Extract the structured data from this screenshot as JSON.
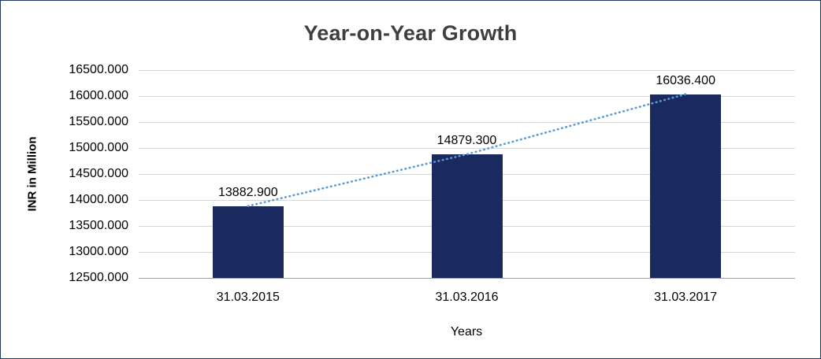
{
  "chart_data": {
    "type": "bar",
    "title": "Year-on-Year Growth",
    "xlabel": "Years",
    "ylabel": "INR in Million",
    "categories": [
      "31.03.2015",
      "31.03.2016",
      "31.03.2017"
    ],
    "values": [
      13882.9,
      14879.3,
      16036.4
    ],
    "value_labels": [
      "13882.900",
      "14879.300",
      "16036.400"
    ],
    "ylim": [
      12500,
      16500
    ],
    "ytick_step": 500,
    "ytick_labels": [
      "12500.000",
      "13000.000",
      "13500.000",
      "14000.000",
      "14500.000",
      "15000.000",
      "15500.000",
      "16000.000",
      "16500.000"
    ],
    "grid": true,
    "legend_position": "none",
    "trendline": "dotted linear trendline across bar tops",
    "colors": {
      "bar": "#1b2a5e",
      "trendline": "#5b9bd5",
      "gridline": "#d6d6d6",
      "axisline": "#9e9e9e",
      "title_text": "#3f3f3f",
      "frame_border": "#1f3864"
    }
  }
}
